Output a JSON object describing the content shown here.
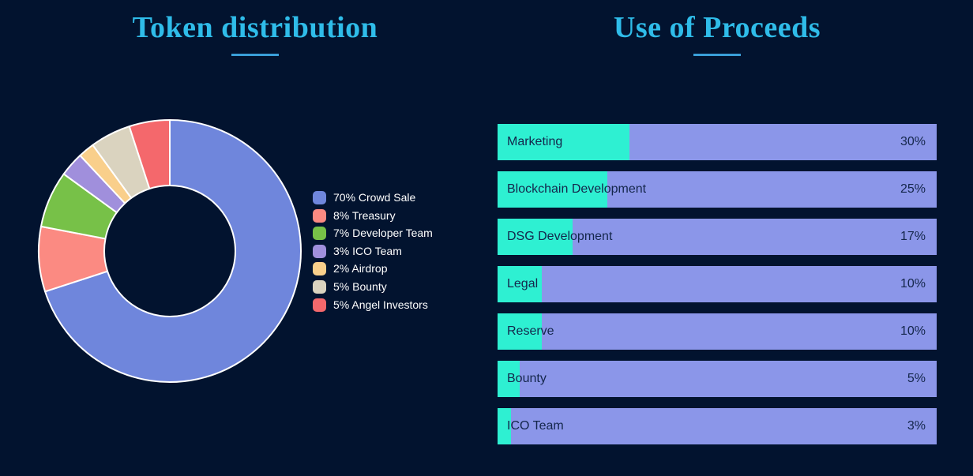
{
  "page": {
    "background_color": "#02132f"
  },
  "styles": {
    "title_color": "#2fbce9",
    "underline_color": "#3a9fd8",
    "legend_text_color": "#ffffff",
    "bar_bg_color": "#8b96e9",
    "bar_fill_color": "#2ef0d2",
    "bar_text_color": "#14264b",
    "slice_stroke_color": "#ffffff"
  },
  "left_section": {
    "title": "Token distribution"
  },
  "right_section": {
    "title": "Use of Proceeds"
  },
  "chart_data": [
    {
      "type": "pie",
      "subtype": "donut",
      "title": "Token distribution",
      "labels": [
        "Crowd Sale",
        "Treasury",
        "Developer Team",
        "ICO Team",
        "Airdrop",
        "Bounty",
        "Angel Investors"
      ],
      "values": [
        70,
        8,
        7,
        3,
        2,
        5,
        5
      ],
      "legend_labels": [
        "70% Crowd Sale",
        "8% Treasury",
        "7% Developer Team",
        "3% ICO Team",
        "2% Airdrop",
        "5% Bounty",
        "5% Angel Investors"
      ],
      "colors": [
        "#6f86dc",
        "#fb8a82",
        "#77c148",
        "#a08fdc",
        "#f9cf8b",
        "#dad3bf",
        "#f4686c"
      ],
      "start_angle_deg": 0,
      "direction": "clockwise",
      "inner_radius_ratio": 0.5,
      "legend_position": "right"
    },
    {
      "type": "bar",
      "orientation": "horizontal",
      "title": "Use of Proceeds",
      "categories": [
        "Marketing",
        "Blockchain Development",
        "DSG Development",
        "Legal",
        "Reserve",
        "Bounty",
        "ICO Team"
      ],
      "values": [
        30,
        25,
        17,
        10,
        10,
        5,
        3
      ],
      "value_labels": [
        "30%",
        "25%",
        "17%",
        "10%",
        "10%",
        "5%",
        "3%"
      ],
      "xlim": [
        0,
        100
      ],
      "grid": false,
      "legend_position": "none"
    }
  ]
}
